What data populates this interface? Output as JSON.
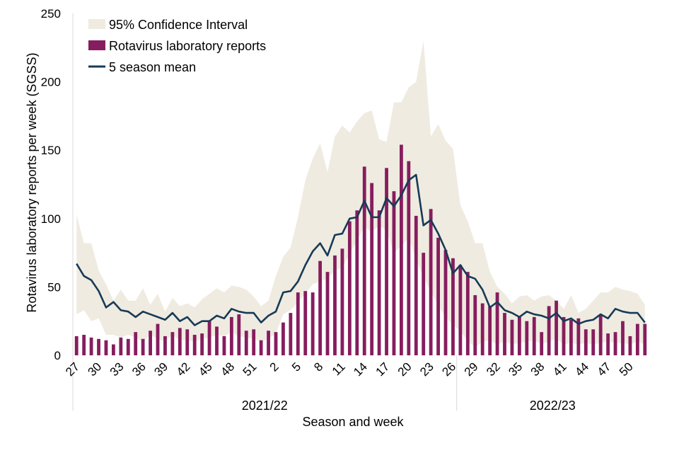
{
  "chart_data": {
    "type": "bar",
    "ylabel": "Rotavirus laboratory reports per week (SGSS)",
    "xlabel": "Season and week",
    "ylim": [
      0,
      250
    ],
    "y_ticks": [
      0,
      50,
      100,
      150,
      200,
      250
    ],
    "grid": false,
    "legend_position": "top-left",
    "legend": {
      "ci": "95% Confidence Interval",
      "bars": "Rotavirus laboratory reports",
      "mean": "5 season mean"
    },
    "seasons": [
      {
        "label": "2021/22",
        "start": 0,
        "end": 51
      },
      {
        "label": "2022/23",
        "start": 52,
        "end": 77
      }
    ],
    "x_tick_labels": [
      {
        "index": 0,
        "label": "27"
      },
      {
        "index": 3,
        "label": "30"
      },
      {
        "index": 6,
        "label": "33"
      },
      {
        "index": 9,
        "label": "36"
      },
      {
        "index": 12,
        "label": "39"
      },
      {
        "index": 15,
        "label": "42"
      },
      {
        "index": 18,
        "label": "45"
      },
      {
        "index": 21,
        "label": "48"
      },
      {
        "index": 24,
        "label": "51"
      },
      {
        "index": 27,
        "label": "2"
      },
      {
        "index": 30,
        "label": "5"
      },
      {
        "index": 33,
        "label": "8"
      },
      {
        "index": 36,
        "label": "11"
      },
      {
        "index": 39,
        "label": "14"
      },
      {
        "index": 42,
        "label": "17"
      },
      {
        "index": 45,
        "label": "20"
      },
      {
        "index": 48,
        "label": "23"
      },
      {
        "index": 51,
        "label": "26"
      },
      {
        "index": 54,
        "label": "29"
      },
      {
        "index": 57,
        "label": "32"
      },
      {
        "index": 60,
        "label": "35"
      },
      {
        "index": 63,
        "label": "38"
      },
      {
        "index": 66,
        "label": "41"
      },
      {
        "index": 69,
        "label": "44"
      },
      {
        "index": 72,
        "label": "47"
      },
      {
        "index": 75,
        "label": "50"
      }
    ],
    "reports": [
      14,
      15,
      13,
      12,
      11,
      8,
      13,
      12,
      17,
      12,
      18,
      23,
      14,
      17,
      20,
      19,
      15,
      16,
      25,
      21,
      14,
      28,
      30,
      18,
      19,
      11,
      18,
      17,
      24,
      31,
      46,
      47,
      46,
      69,
      61,
      73,
      78,
      98,
      106,
      138,
      126,
      106,
      137,
      120,
      154,
      142,
      102,
      75,
      107,
      86,
      77,
      71,
      66,
      61,
      44,
      38,
      36,
      46,
      31,
      26,
      28,
      25,
      28,
      17,
      36,
      40,
      28,
      26,
      27,
      19,
      19,
      30,
      16,
      17,
      25,
      14,
      23,
      23
    ],
    "mean": [
      67,
      58,
      55,
      47,
      35,
      39,
      33,
      32,
      28,
      32,
      30,
      28,
      26,
      31,
      25,
      28,
      22,
      25,
      25,
      29,
      27,
      34,
      32,
      31,
      31,
      24,
      29,
      32,
      46,
      47,
      54,
      66,
      76,
      82,
      73,
      88,
      89,
      100,
      101,
      113,
      101,
      101,
      115,
      109,
      117,
      128,
      132,
      95,
      99,
      89,
      77,
      60,
      66,
      58,
      56,
      48,
      35,
      39,
      33,
      31,
      28,
      32,
      30,
      29,
      27,
      31,
      25,
      27,
      23,
      25,
      26,
      30,
      27,
      34,
      32,
      31,
      31,
      24
    ],
    "ci_upper": [
      103,
      82,
      82,
      62,
      52,
      40,
      48,
      40,
      40,
      49,
      37,
      45,
      32,
      42,
      36,
      38,
      35,
      41,
      45,
      49,
      46,
      51,
      50,
      48,
      43,
      36,
      40,
      58,
      72,
      79,
      101,
      128,
      144,
      155,
      134,
      160,
      168,
      163,
      171,
      177,
      179,
      158,
      156,
      185,
      185,
      196,
      200,
      230,
      160,
      169,
      157,
      151,
      110,
      98,
      82,
      82,
      61,
      50,
      45,
      38,
      43,
      44,
      40,
      43,
      44,
      40,
      34,
      44,
      31,
      34,
      40,
      46,
      46,
      50,
      48,
      47,
      45,
      37
    ],
    "ci_lower": [
      30,
      33,
      25,
      27,
      15,
      15,
      13,
      15,
      13,
      10,
      15,
      12,
      10,
      15,
      11,
      11,
      10,
      12,
      13,
      15,
      14,
      17,
      14,
      13,
      12,
      10,
      12,
      16,
      30,
      33,
      39,
      45,
      52,
      54,
      56,
      62,
      64,
      74,
      84,
      94,
      90,
      95,
      91,
      75,
      80,
      86,
      70,
      57,
      47,
      36,
      28,
      22,
      18,
      10,
      6,
      10,
      11,
      8,
      10,
      8,
      9,
      10,
      11,
      8,
      10,
      12,
      8,
      9,
      8,
      9,
      8,
      9,
      10,
      9,
      9,
      8,
      10,
      8
    ]
  }
}
